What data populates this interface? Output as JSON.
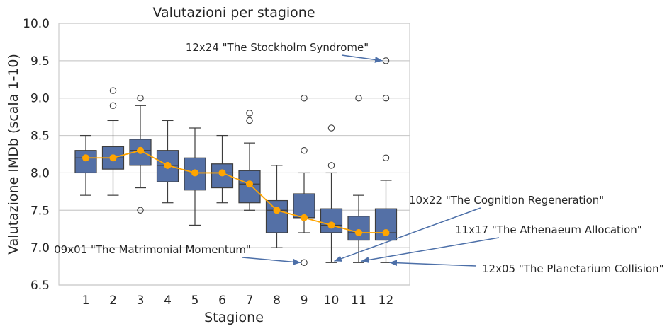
{
  "chart_data": {
    "type": "box",
    "title": "Valutazioni per stagione",
    "xlabel": "Stagione",
    "ylabel": "Valutazione IMDb (scala 1-10)",
    "ylim": [
      6.5,
      10.0
    ],
    "yticks": [
      "6.5",
      "7.0",
      "7.5",
      "8.0",
      "8.5",
      "9.0",
      "9.5",
      "10.0"
    ],
    "grid": "horizontal",
    "categories": [
      "1",
      "2",
      "3",
      "4",
      "5",
      "6",
      "7",
      "8",
      "9",
      "10",
      "11",
      "12"
    ],
    "boxes": [
      {
        "season": "1",
        "whislo": 7.7,
        "q1": 8.0,
        "med": 8.2,
        "q3": 8.3,
        "whishi": 8.5,
        "fliers": []
      },
      {
        "season": "2",
        "whislo": 7.7,
        "q1": 8.05,
        "med": 8.2,
        "q3": 8.35,
        "whishi": 8.7,
        "fliers": [
          8.9,
          9.1
        ]
      },
      {
        "season": "3",
        "whislo": 7.8,
        "q1": 8.1,
        "med": 8.3,
        "q3": 8.45,
        "whishi": 8.9,
        "fliers": [
          9.0,
          7.5
        ]
      },
      {
        "season": "4",
        "whislo": 7.6,
        "q1": 7.88,
        "med": 8.1,
        "q3": 8.3,
        "whishi": 8.7,
        "fliers": []
      },
      {
        "season": "5",
        "whislo": 7.3,
        "q1": 7.77,
        "med": 8.0,
        "q3": 8.2,
        "whishi": 8.6,
        "fliers": []
      },
      {
        "season": "6",
        "whislo": 7.6,
        "q1": 7.8,
        "med": 8.0,
        "q3": 8.12,
        "whishi": 8.5,
        "fliers": []
      },
      {
        "season": "7",
        "whislo": 7.5,
        "q1": 7.6,
        "med": 7.85,
        "q3": 8.03,
        "whishi": 8.4,
        "fliers": [
          8.7,
          8.8
        ]
      },
      {
        "season": "8",
        "whislo": 7.0,
        "q1": 7.2,
        "med": 7.5,
        "q3": 7.63,
        "whishi": 8.1,
        "fliers": []
      },
      {
        "season": "9",
        "whislo": 7.2,
        "q1": 7.4,
        "med": 7.4,
        "q3": 7.72,
        "whishi": 8.0,
        "fliers": [
          9.0,
          8.3,
          6.8
        ]
      },
      {
        "season": "10",
        "whislo": 6.8,
        "q1": 7.2,
        "med": 7.3,
        "q3": 7.52,
        "whishi": 8.0,
        "fliers": [
          8.6,
          8.1
        ]
      },
      {
        "season": "11",
        "whislo": 6.8,
        "q1": 7.1,
        "med": 7.2,
        "q3": 7.42,
        "whishi": 7.7,
        "fliers": [
          9.0
        ]
      },
      {
        "season": "12",
        "whislo": 6.8,
        "q1": 7.1,
        "med": 7.2,
        "q3": 7.52,
        "whishi": 7.9,
        "fliers": [
          9.5,
          9.0,
          8.2
        ]
      }
    ],
    "median_line": {
      "color": "#ffa500",
      "values": [
        8.2,
        8.2,
        8.3,
        8.1,
        8.0,
        8.0,
        7.85,
        7.5,
        7.4,
        7.3,
        7.2,
        7.2
      ]
    },
    "annotations": [
      {
        "text": "12x24 \"The Stockholm Syndrome\"",
        "target_season": "12",
        "target_value": 9.5
      },
      {
        "text": "10x22 \"The Cognition Regeneration\"",
        "target_season": "10",
        "target_value": 6.8
      },
      {
        "text": "11x17 \"The Athenaeum Allocation\"",
        "target_season": "11",
        "target_value": 6.8
      },
      {
        "text": "09x01 \"The Matrimonial Momentum\"",
        "target_season": "9",
        "target_value": 6.8
      },
      {
        "text": "12x05 \"The Planetarium Collision\"",
        "target_season": "12",
        "target_value": 6.8
      }
    ],
    "colors": {
      "box_fill": "#5470a6",
      "box_edge": "#3d3d3d",
      "median_dot": "#ffa500",
      "grid": "#cccccc",
      "arrow": "#4c6fa8"
    }
  }
}
